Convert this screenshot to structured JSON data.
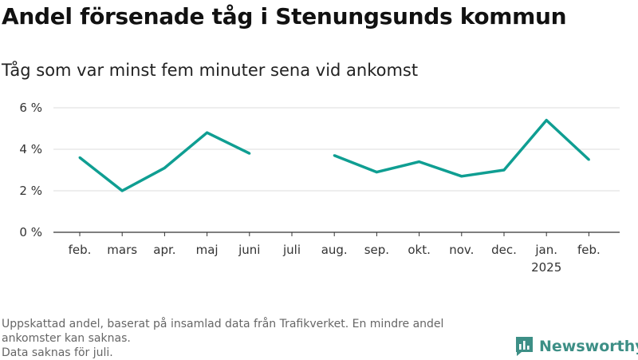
{
  "header": {
    "title": "Andel försenade tåg i Stenungsunds kommun",
    "subtitle": "Tåg som var minst fem minuter sena vid ankomst"
  },
  "footer": {
    "note_line1": "Uppskattad andel, baserat på insamlad data från Trafikverket. En mindre andel",
    "note_line2": "ankomster kan saknas.",
    "note_line3": "Data saknas för juli.",
    "brand": "Newsworthy"
  },
  "chart_data": {
    "type": "line",
    "title": "Andel försenade tåg i Stenungsunds kommun",
    "subtitle": "Tåg som var minst fem minuter sena vid ankomst",
    "categories": [
      "feb.",
      "mars",
      "apr.",
      "maj",
      "juni",
      "juli",
      "aug.",
      "sep.",
      "okt.",
      "nov.",
      "dec.",
      "jan.",
      "feb."
    ],
    "year_labels": [
      "",
      "",
      "",
      "",
      "",
      "",
      "",
      "",
      "",
      "",
      "",
      "2025",
      ""
    ],
    "values": [
      3.6,
      2.0,
      3.1,
      4.8,
      3.8,
      null,
      3.7,
      2.9,
      3.4,
      2.7,
      3.0,
      5.4,
      3.5
    ],
    "y_ticks": [
      0,
      2,
      4,
      6
    ],
    "y_tick_labels": [
      "0 %",
      "2 %",
      "4 %",
      "6 %"
    ],
    "ylim": [
      0,
      6
    ],
    "grid": true,
    "line_color": "#0f9e92",
    "xlabel": "",
    "ylabel": ""
  }
}
